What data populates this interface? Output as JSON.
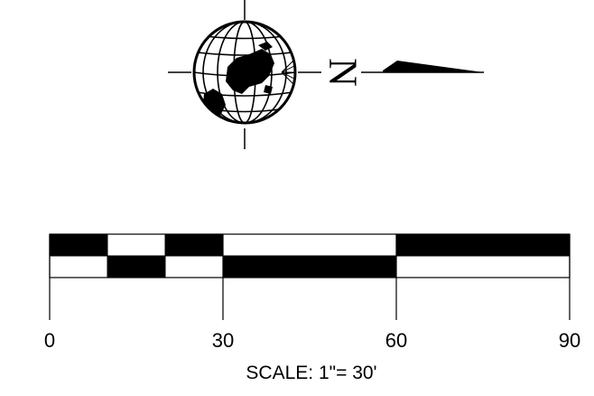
{
  "north_arrow": {
    "icon": "globe-icon",
    "letter": "N"
  },
  "scale_bar": {
    "tick_labels": [
      "0",
      "30",
      "60",
      "90"
    ],
    "tick_values": [
      0,
      30,
      60,
      90
    ],
    "caption": "SCALE: 1\"= 30'",
    "fill_color": "#000000"
  }
}
